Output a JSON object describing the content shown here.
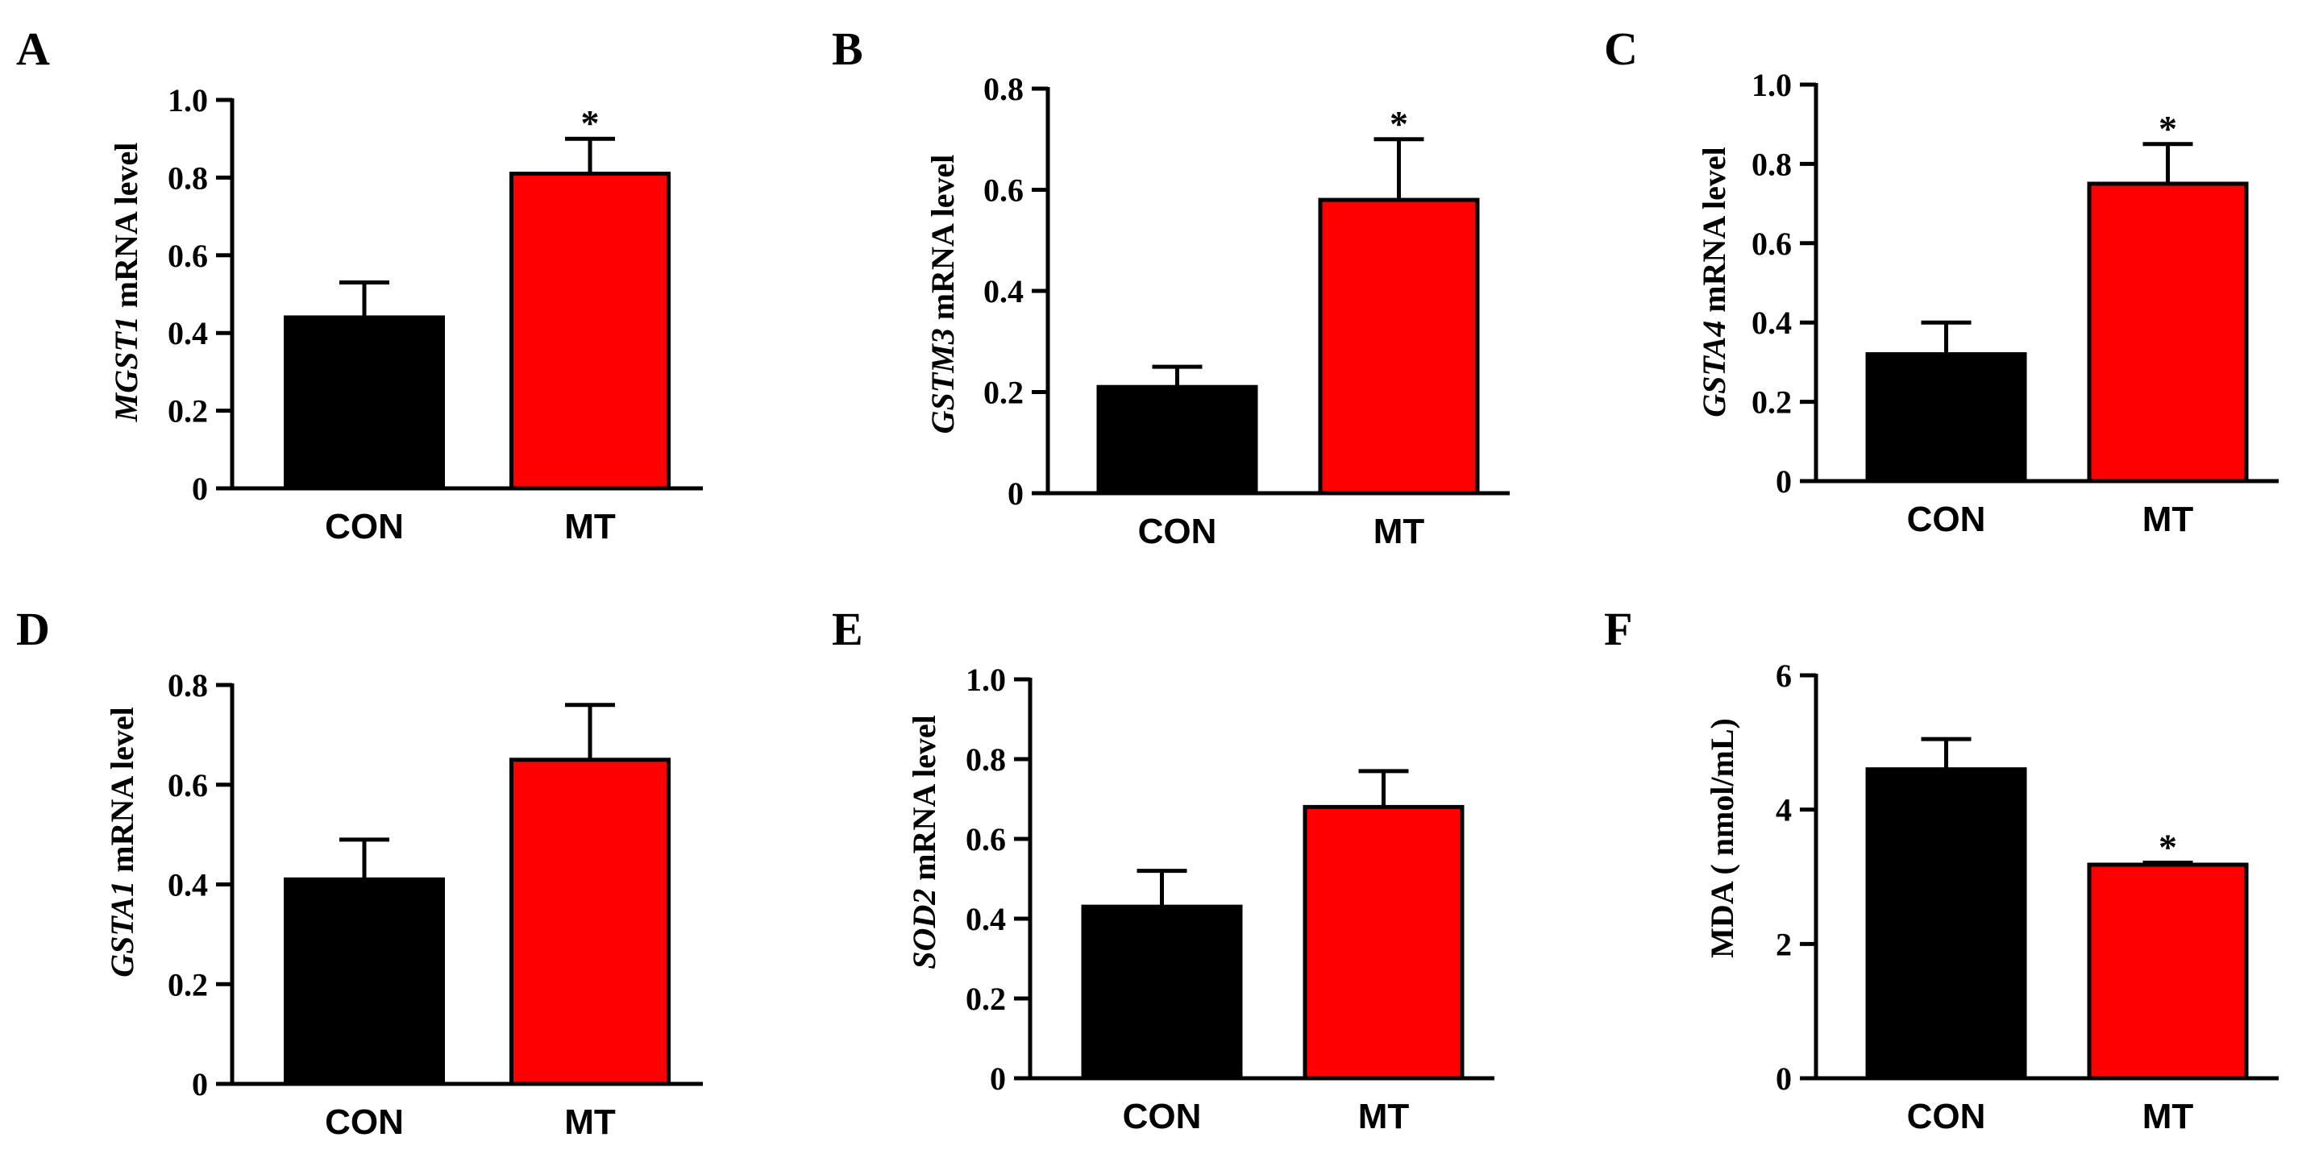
{
  "chart_data": [
    {
      "panel": "A",
      "type": "bar",
      "categories": [
        "CON",
        "MT"
      ],
      "values": [
        0.44,
        0.81
      ],
      "errors": [
        0.09,
        0.09
      ],
      "colors": [
        "#000000",
        "#ff0000"
      ],
      "significance": [
        "",
        "*"
      ],
      "ylabel_gene": "MGST1",
      "ylabel_rest": " mRNA level",
      "ylim": [
        0,
        1.0
      ],
      "yticks": [
        0,
        0.2,
        0.4,
        0.6,
        0.8,
        1.0
      ],
      "ytick_labels": [
        "0",
        "0.2",
        "0.4",
        "0.6",
        "0.8",
        "1.0"
      ]
    },
    {
      "panel": "B",
      "type": "bar",
      "categories": [
        "CON",
        "MT"
      ],
      "values": [
        0.21,
        0.58
      ],
      "errors": [
        0.04,
        0.12
      ],
      "colors": [
        "#000000",
        "#ff0000"
      ],
      "significance": [
        "",
        "*"
      ],
      "ylabel_gene": "GSTM3",
      "ylabel_rest": " mRNA level",
      "ylim": [
        0,
        0.8
      ],
      "yticks": [
        0,
        0.2,
        0.4,
        0.6,
        0.8
      ],
      "ytick_labels": [
        "0",
        "0.2",
        "0.4",
        "0.6",
        "0.8"
      ]
    },
    {
      "panel": "C",
      "type": "bar",
      "categories": [
        "CON",
        "MT"
      ],
      "values": [
        0.32,
        0.75
      ],
      "errors": [
        0.08,
        0.1
      ],
      "colors": [
        "#000000",
        "#ff0000"
      ],
      "significance": [
        "",
        "*"
      ],
      "ylabel_gene": "GSTA4",
      "ylabel_rest": " mRNA level",
      "ylim": [
        0,
        1.0
      ],
      "yticks": [
        0,
        0.2,
        0.4,
        0.6,
        0.8,
        1.0
      ],
      "ytick_labels": [
        "0",
        "0.2",
        "0.4",
        "0.6",
        "0.8",
        "1.0"
      ]
    },
    {
      "panel": "D",
      "type": "bar",
      "categories": [
        "CON",
        "MT"
      ],
      "values": [
        0.41,
        0.65
      ],
      "errors": [
        0.08,
        0.11
      ],
      "colors": [
        "#000000",
        "#ff0000"
      ],
      "significance": [
        "",
        ""
      ],
      "ylabel_gene": "GSTA1",
      "ylabel_rest": " mRNA level",
      "ylim": [
        0,
        0.8
      ],
      "yticks": [
        0,
        0.2,
        0.4,
        0.6,
        0.8
      ],
      "ytick_labels": [
        "0",
        "0.2",
        "0.4",
        "0.6",
        "0.8"
      ]
    },
    {
      "panel": "E",
      "type": "bar",
      "categories": [
        "CON",
        "MT"
      ],
      "values": [
        0.43,
        0.68
      ],
      "errors": [
        0.09,
        0.09
      ],
      "colors": [
        "#000000",
        "#ff0000"
      ],
      "significance": [
        "",
        ""
      ],
      "ylabel_gene": "SOD2",
      "ylabel_rest": " mRNA level",
      "ylim": [
        0,
        1.0
      ],
      "yticks": [
        0,
        0.2,
        0.4,
        0.6,
        0.8,
        1.0
      ],
      "ytick_labels": [
        "0",
        "0.2",
        "0.4",
        "0.6",
        "0.8",
        "1.0"
      ]
    },
    {
      "panel": "F",
      "type": "bar",
      "categories": [
        "CON",
        "MT"
      ],
      "values": [
        4.6,
        3.18
      ],
      "errors": [
        0.45,
        0.03
      ],
      "colors": [
        "#000000",
        "#ff0000"
      ],
      "significance": [
        "",
        "*"
      ],
      "ylabel_gene": "",
      "ylabel_rest": "MDA ( nmol/mL)",
      "ylim": [
        0,
        6
      ],
      "yticks": [
        0,
        2,
        4,
        6
      ],
      "ytick_labels": [
        "0",
        "2",
        "4",
        "6"
      ]
    }
  ]
}
